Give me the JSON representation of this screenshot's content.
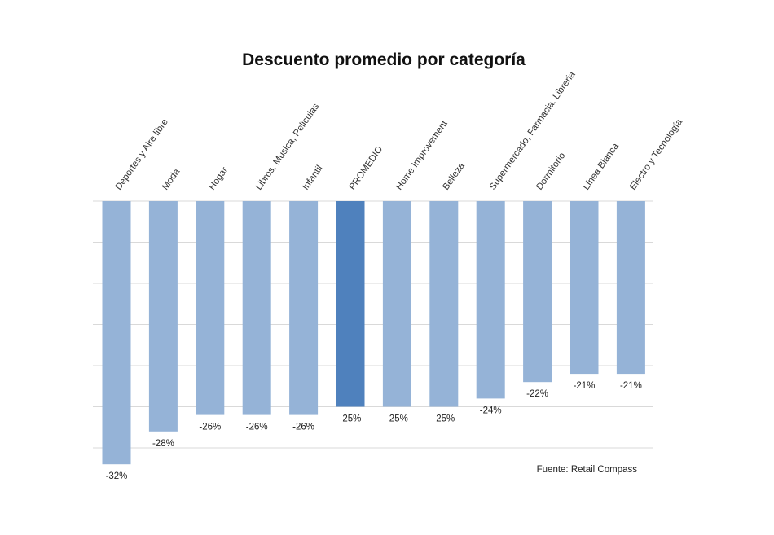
{
  "chart_data": {
    "type": "bar",
    "title": "Descuento promedio por categoría",
    "categories": [
      "Deportes y Aire libre",
      "Moda",
      "Hogar",
      "Libros, Musica, Peliculas",
      "Infantil",
      "PROMEDIO",
      "Home Improvement",
      "Belleza",
      "Supermercado, Farmacia, Libreria",
      "Dormitorio",
      "Línea Blanca",
      "Electro y Tecnología"
    ],
    "values": [
      -32,
      -28,
      -26,
      -26,
      -26,
      -25,
      -25,
      -25,
      -24,
      -22,
      -21,
      -21
    ],
    "value_labels": [
      "-32%",
      "-28%",
      "-26%",
      "-26%",
      "-26%",
      "-25%",
      "-25%",
      "-25%",
      "-24%",
      "-22%",
      "-21%",
      "-21%"
    ],
    "highlight_category": "PROMEDIO",
    "ylim": [
      -35,
      0
    ],
    "grid": true,
    "xlabel": "",
    "ylabel": "",
    "source": "Fuente: Retail Compass",
    "colors": {
      "bar": "#95b3d7",
      "highlight": "#4f81bd",
      "grid": "#d9d9d9"
    }
  }
}
